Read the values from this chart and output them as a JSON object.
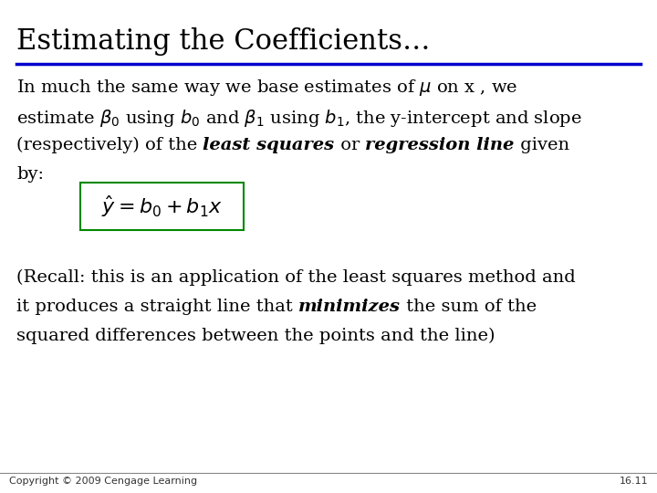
{
  "title": "Estimating the Coefficients…",
  "title_color": "#000000",
  "title_fontsize": 22,
  "title_underline_color": "#0000cc",
  "background_color": "#ffffff",
  "body_fontsize": 14,
  "copyright": "Copyright © 2009 Cengage Learning",
  "page_number": "16.11",
  "footer_fontsize": 8,
  "equation_box_color": "#008800",
  "line1": "In much the same way we base estimates of $\\mu$ on x , we",
  "line2a": "estimate $\\beta_0$ using $b_0$ and $\\beta_1$ using $b_1$, the y-intercept and slope",
  "line3_normal1": "(respectively) of the ",
  "line3_bold1": "least squares",
  "line3_normal2": " or ",
  "line3_bold2": "regression line",
  "line3_normal3": " given",
  "line4": "by:",
  "para2_line1": "(Recall: this is an application of the least squares method and",
  "para2_line2a": "it produces a straight line that ",
  "para2_line2b": "minimizes",
  "para2_line2c": " the sum of the",
  "para2_line3": "squared differences between the points and the line)"
}
